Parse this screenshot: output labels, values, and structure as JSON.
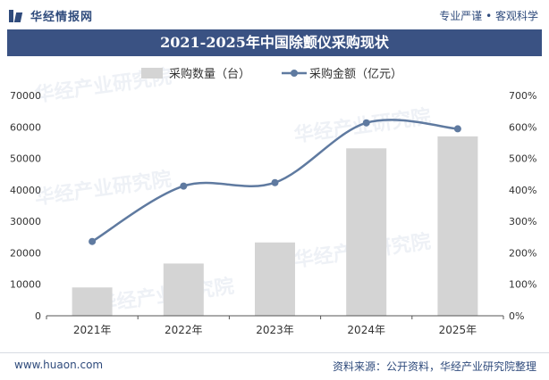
{
  "header": {
    "brand": "华经情报网",
    "slogan": "专业严谨 • 客观科学"
  },
  "footer": {
    "url": "www.huaon.com",
    "source": "资料来源：公开资料，华经产业研究院整理"
  },
  "watermark": "华经产业研究院",
  "chart_data": {
    "type": "bar",
    "title": "2021-2025年中国除颤仪采购现状",
    "categories": [
      "2021年",
      "2022年",
      "2023年",
      "2024年",
      "2025年"
    ],
    "series": [
      {
        "name": "采购数量（台）",
        "type": "bar",
        "axis": "left",
        "color": "#d4d4d4",
        "values": [
          9000,
          16600,
          23300,
          53200,
          57000
        ]
      },
      {
        "name": "采购金额（亿元）",
        "type": "line",
        "axis": "right",
        "color": "#5f7aa0",
        "values": [
          236,
          412,
          423,
          613,
          594
        ]
      }
    ],
    "y_left": {
      "min": 0,
      "max": 70000,
      "ticks": [
        0,
        10000,
        20000,
        30000,
        40000,
        50000,
        60000,
        70000
      ]
    },
    "y_right": {
      "min": 0,
      "max": 700,
      "ticks": [
        "0%",
        "100%",
        "200%",
        "300%",
        "400%",
        "500%",
        "600%",
        "700%"
      ]
    },
    "legend_position": "top-center",
    "grid": false
  }
}
